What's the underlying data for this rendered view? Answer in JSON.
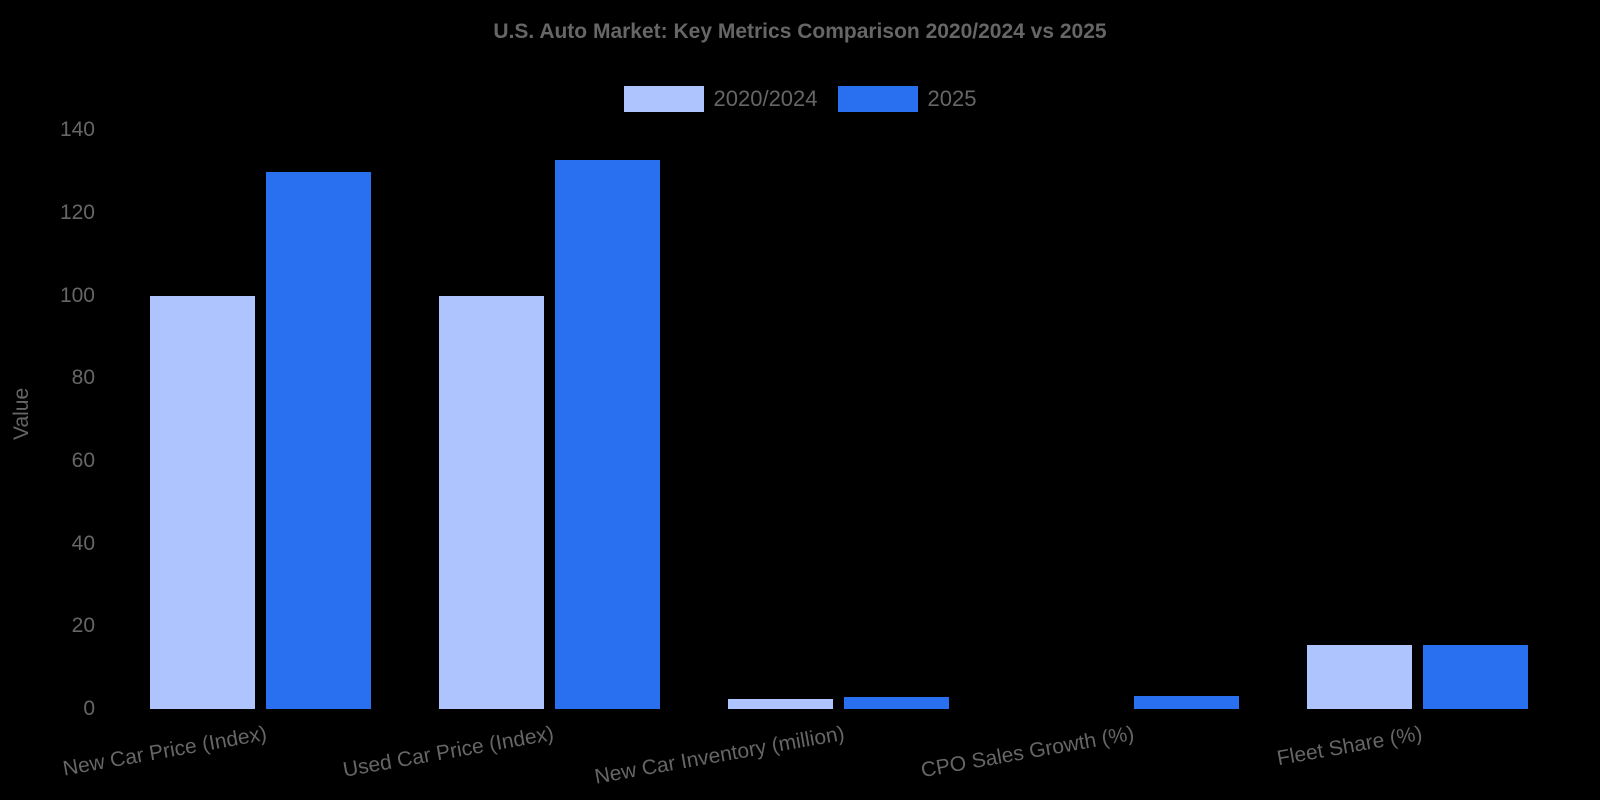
{
  "chart_data": {
    "type": "bar",
    "title": "U.S. Auto Market: Key Metrics Comparison 2020/2024 vs 2025",
    "xlabel": "",
    "ylabel": "Value",
    "ylim": [
      0,
      140
    ],
    "yticks": [
      "0",
      "20",
      "40",
      "60",
      "80",
      "100",
      "120",
      "140"
    ],
    "grid": false,
    "legend_position": "top",
    "categories": [
      "New Car Price (Index)",
      "Used Car Price (Index)",
      "New Car Inventory (million)",
      "CPO Sales Growth (%)",
      "Fleet Share (%)"
    ],
    "series": [
      {
        "name": "2020/2024",
        "color": "#adc4ff",
        "values": [
          100,
          100,
          2.4,
          0,
          15.5
        ]
      },
      {
        "name": "2025",
        "color": "#2870ef",
        "values": [
          130,
          133,
          3,
          3.2,
          15.5
        ]
      }
    ]
  }
}
